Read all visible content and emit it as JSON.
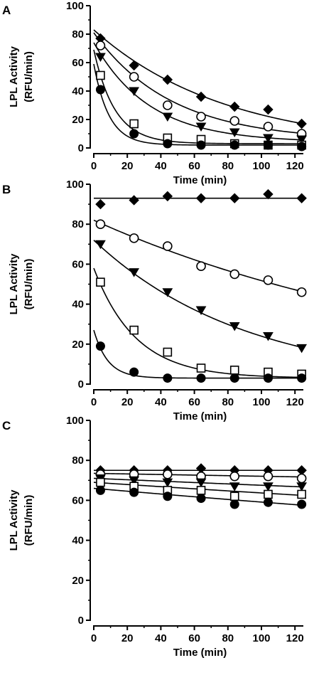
{
  "chart_data": [
    {
      "type": "scatter",
      "panel": "A",
      "xlabel": "Time (min)",
      "ylabel_line1": "LPL Activity",
      "ylabel_line2": "(RFU/min)",
      "xlim": [
        0,
        125
      ],
      "ylim": [
        0,
        100
      ],
      "x_ticks": [
        0,
        20,
        40,
        60,
        80,
        100,
        120
      ],
      "y_ticks": [
        0,
        20,
        40,
        60,
        80,
        100
      ],
      "grid": false,
      "x": [
        4,
        24,
        44,
        64,
        84,
        104,
        124
      ],
      "series": [
        {
          "marker": "diamond-filled",
          "values": [
            77,
            58,
            48,
            36,
            29,
            27,
            17
          ],
          "fit": {
            "a": 83,
            "b": 0.0127,
            "c": 0
          }
        },
        {
          "marker": "circle-open",
          "values": [
            72,
            50,
            30,
            22,
            19,
            15,
            10
          ],
          "fit": {
            "a": 76,
            "b": 0.0215,
            "c": 5
          }
        },
        {
          "marker": "triangle-down-filled",
          "values": [
            64,
            40,
            22,
            15,
            11,
            7,
            6
          ],
          "fit": {
            "a": 70,
            "b": 0.03,
            "c": 4
          }
        },
        {
          "marker": "square-open",
          "values": [
            51,
            17,
            7,
            6,
            3,
            2,
            2
          ],
          "fit": {
            "a": 66,
            "b": 0.08,
            "c": 3
          }
        },
        {
          "marker": "circle-filled",
          "values": [
            41,
            10,
            3,
            2,
            2,
            2,
            1
          ],
          "fit": {
            "a": 57,
            "b": 0.11,
            "c": 2
          }
        }
      ]
    },
    {
      "type": "scatter",
      "panel": "B",
      "xlabel": "Time (min)",
      "ylabel_line1": "LPL Activity",
      "ylabel_line2": "(RFU/min)",
      "xlim": [
        0,
        125
      ],
      "ylim": [
        0,
        100
      ],
      "x_ticks": [
        0,
        20,
        40,
        60,
        80,
        100,
        120
      ],
      "y_ticks": [
        0,
        20,
        40,
        60,
        80,
        100
      ],
      "grid": false,
      "x": [
        4,
        24,
        44,
        64,
        84,
        104,
        124
      ],
      "series": [
        {
          "marker": "diamond-filled",
          "values": [
            90,
            92,
            94,
            93,
            93,
            95,
            93
          ],
          "fit": {
            "a": 0,
            "b": 0,
            "c": 93
          }
        },
        {
          "marker": "circle-open",
          "values": [
            80,
            73,
            69,
            59,
            55,
            52,
            46
          ],
          "fit": {
            "a": 82,
            "b": 0.0046,
            "c": 0
          }
        },
        {
          "marker": "triangle-down-filled",
          "values": [
            70,
            56,
            46,
            37,
            29,
            24,
            18
          ],
          "fit": {
            "a": 72,
            "b": 0.011,
            "c": 0
          }
        },
        {
          "marker": "square-open",
          "values": [
            51,
            27,
            16,
            8,
            7,
            6,
            5
          ],
          "fit": {
            "a": 55,
            "b": 0.04,
            "c": 3
          }
        },
        {
          "marker": "circle-filled",
          "values": [
            19,
            6,
            3,
            3,
            3,
            3,
            3
          ],
          "fit": {
            "a": 24,
            "b": 0.12,
            "c": 3
          }
        }
      ]
    },
    {
      "type": "scatter",
      "panel": "C",
      "xlabel": "Time (min)",
      "ylabel_line1": "LPL Activity",
      "ylabel_line2": "(RFU/min)",
      "xlim": [
        0,
        125
      ],
      "ylim": [
        0,
        100
      ],
      "x_ticks": [
        0,
        20,
        40,
        60,
        80,
        100,
        120
      ],
      "y_ticks": [
        0,
        20,
        40,
        60,
        80,
        100
      ],
      "grid": false,
      "x": [
        4,
        24,
        44,
        64,
        84,
        104,
        124
      ],
      "series": [
        {
          "marker": "diamond-filled",
          "values": [
            75,
            75,
            75,
            76,
            75,
            75,
            75
          ],
          "fit": {
            "a": 0,
            "b": 0,
            "c": 75
          }
        },
        {
          "marker": "circle-open",
          "values": [
            73,
            73,
            73,
            72,
            72,
            72,
            71
          ],
          "fit": {
            "a": 73.5,
            "b": 0.0002,
            "c": 0
          }
        },
        {
          "marker": "triangle-down-filled",
          "values": [
            71,
            70,
            69,
            69,
            67,
            67,
            67
          ],
          "fit": {
            "a": 71,
            "b": 0.0005,
            "c": 0
          }
        },
        {
          "marker": "square-open",
          "values": [
            69,
            67,
            65,
            65,
            62,
            63,
            63
          ],
          "fit": {
            "a": 69,
            "b": 0.0008,
            "c": 0
          }
        },
        {
          "marker": "circle-filled",
          "values": [
            65,
            64,
            62,
            61,
            58,
            59,
            58
          ],
          "fit": {
            "a": 66,
            "b": 0.0011,
            "c": 0
          }
        }
      ]
    }
  ]
}
